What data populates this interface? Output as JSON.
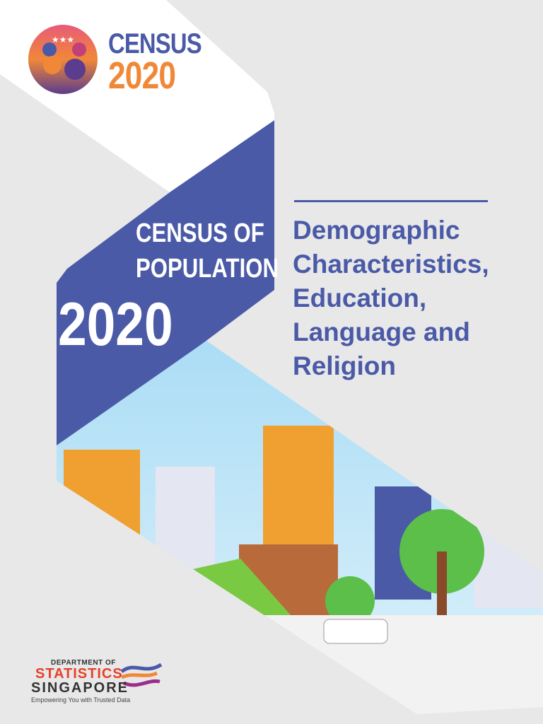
{
  "logo": {
    "word": "CENSUS",
    "year": "2020"
  },
  "band": {
    "title_line1": "CENSUS OF",
    "title_line2": "POPULATION",
    "year": "2020"
  },
  "subtitle": {
    "lines": [
      "Demographic",
      "Characteristics,",
      "Education,",
      "Language and",
      "Religion"
    ]
  },
  "publisher": {
    "dept": "DEPARTMENT OF",
    "name1": "STATISTICS",
    "name2": "SINGAPORE",
    "tagline": "Empowering You with Trusted Data"
  },
  "colors": {
    "brand_blue": "#4a5aa7",
    "brand_orange": "#f08838",
    "background": "#e8e8e8"
  }
}
